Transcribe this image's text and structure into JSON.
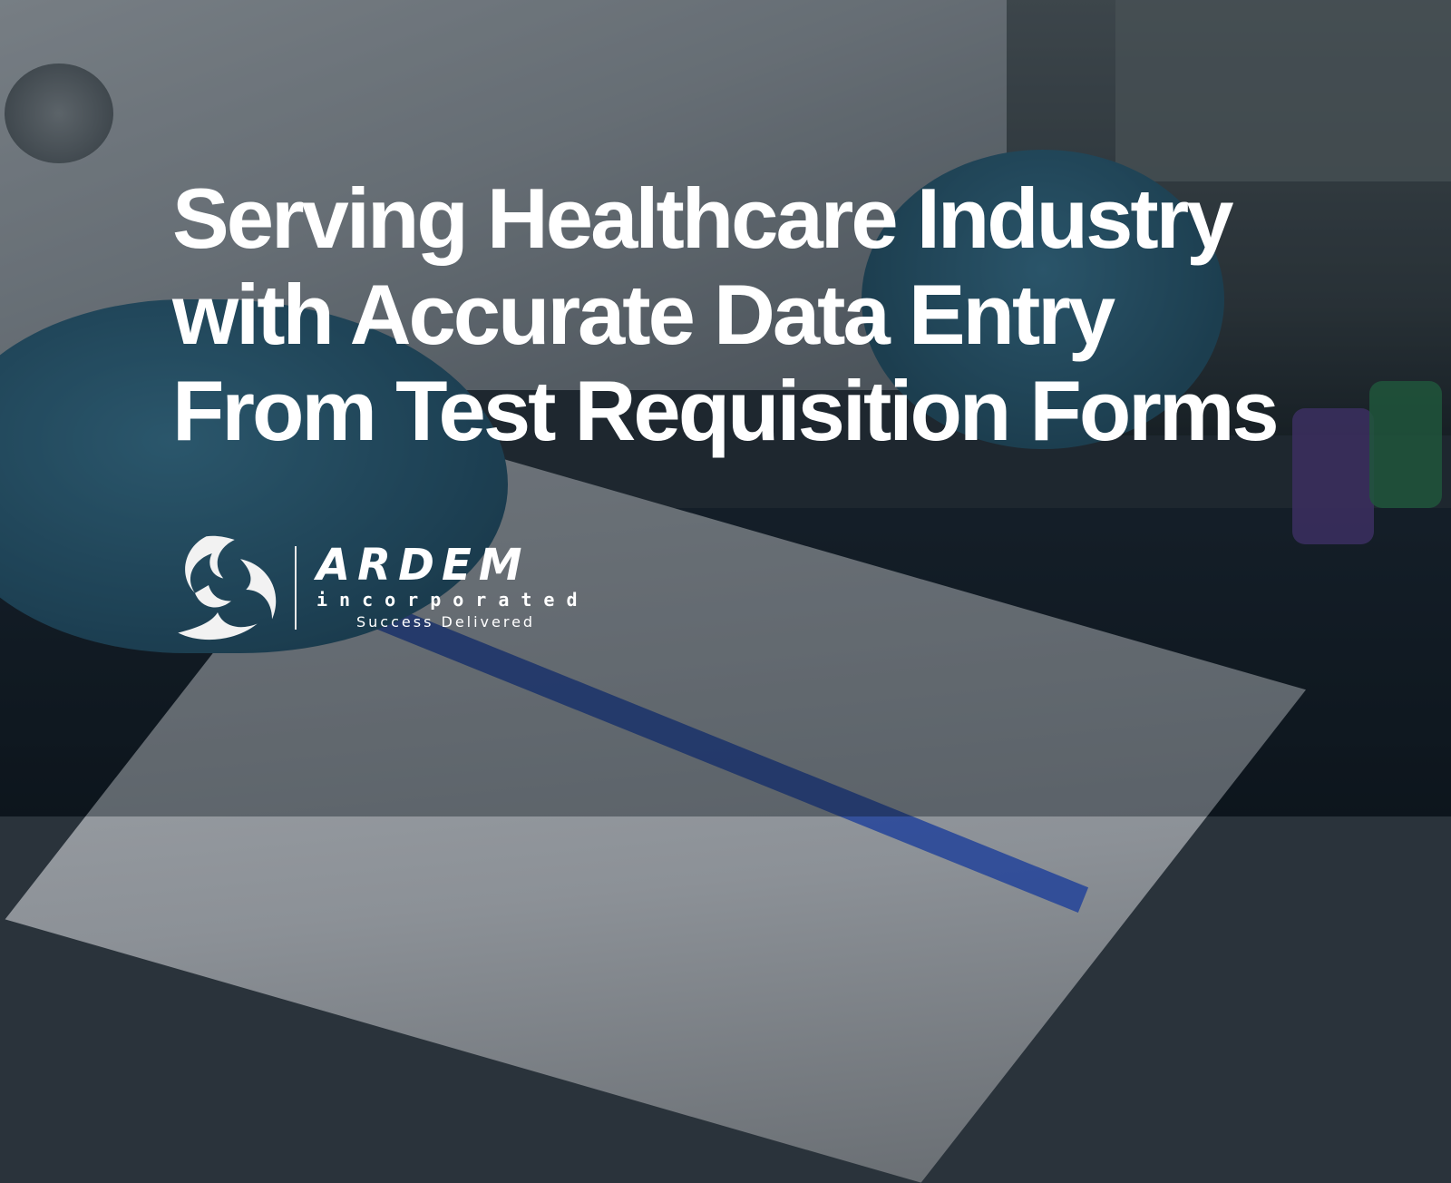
{
  "headline": {
    "lines": [
      "Serving Healthcare Industry",
      "with Accurate Data Entry",
      "From Test Requisition Forms"
    ]
  },
  "logo": {
    "name": "ARDEM",
    "subtitle": "incorporated",
    "tagline": "Success Delivered",
    "icon": "ardem-swirl-logo-icon"
  },
  "colors": {
    "text": "#ffffff",
    "glove": "#3a7896",
    "clipboard": "#1d3f9a"
  }
}
